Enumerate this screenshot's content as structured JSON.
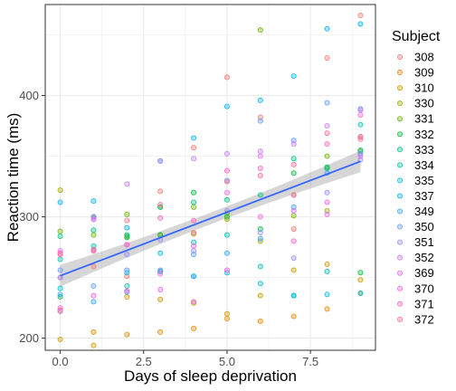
{
  "chart_data": {
    "type": "scatter",
    "xlabel": "Days of sleep deprivation",
    "ylabel": "Reaction time (ms)",
    "xlim": [
      -0.45,
      9.45
    ],
    "ylim": [
      190,
      475
    ],
    "x_ticks": [
      0,
      2.5,
      5,
      7.5
    ],
    "x_tick_labels": [
      "0.0",
      "2.5",
      "5.0",
      "7.5"
    ],
    "y_ticks": [
      200,
      300,
      400
    ],
    "y_tick_labels": [
      "200",
      "300",
      "400"
    ],
    "grid": true,
    "legend_title": "Subject",
    "legend_position": "right",
    "series": [
      {
        "name": "308",
        "color": "#F8766D",
        "x": [
          0,
          1,
          2,
          3,
          4,
          5,
          6,
          7,
          8,
          9
        ],
        "y": [
          250,
          259,
          251,
          321,
          357,
          415,
          382,
          290,
          431,
          466
        ]
      },
      {
        "name": "309",
        "color": "#E58700",
        "x": [
          0,
          1,
          2,
          3,
          4,
          5,
          6,
          7,
          8,
          9
        ],
        "y": [
          223,
          205,
          203,
          205,
          208,
          216,
          214,
          218,
          224,
          237
        ]
      },
      {
        "name": "310",
        "color": "#C99800",
        "x": [
          0,
          1,
          2,
          3,
          4,
          5,
          6,
          7,
          8,
          9
        ],
        "y": [
          199,
          194,
          234,
          232,
          229,
          220,
          235,
          256,
          261,
          248
        ]
      },
      {
        "name": "330",
        "color": "#A3A500",
        "x": [
          0,
          1,
          2,
          3,
          4,
          5,
          6,
          7,
          8,
          9
        ],
        "y": [
          322,
          300,
          284,
          285,
          286,
          298,
          280,
          318,
          305,
          354
        ]
      },
      {
        "name": "331",
        "color": "#6BB100",
        "x": [
          0,
          1,
          2,
          3,
          4,
          5,
          6,
          7,
          8,
          9
        ],
        "y": [
          288,
          285,
          302,
          308,
          308,
          303,
          454,
          301,
          350,
          366
        ]
      },
      {
        "name": "332",
        "color": "#00BA38",
        "x": [
          0,
          1,
          2,
          3,
          4,
          5,
          6,
          7,
          8,
          9
        ],
        "y": [
          234,
          300,
          283,
          285,
          320,
          300,
          290,
          336,
          341,
          254
        ]
      },
      {
        "name": "333",
        "color": "#00BF7D",
        "x": [
          0,
          1,
          2,
          3,
          4,
          5,
          6,
          7,
          8,
          9
        ],
        "y": [
          284,
          289,
          285,
          308,
          312,
          314,
          318,
          348,
          340,
          355
        ]
      },
      {
        "name": "334",
        "color": "#00C0AF",
        "x": [
          0,
          1,
          2,
          3,
          4,
          5,
          6,
          7,
          8,
          9
        ],
        "y": [
          265,
          276,
          243,
          255,
          279,
          285,
          259,
          235,
          255,
          376
        ]
      },
      {
        "name": "335",
        "color": "#00BCD8",
        "x": [
          0,
          1,
          2,
          3,
          4,
          5,
          6,
          7,
          8,
          9
        ],
        "y": [
          241,
          273,
          254,
          270,
          251,
          254,
          245,
          235,
          236,
          237
        ]
      },
      {
        "name": "337",
        "color": "#00B0F6",
        "x": [
          0,
          1,
          2,
          3,
          4,
          5,
          6,
          7,
          8,
          9
        ],
        "y": [
          312,
          313,
          291,
          346,
          365,
          391,
          396,
          416,
          455,
          459
        ]
      },
      {
        "name": "349",
        "color": "#35A2FF",
        "x": [
          0,
          1,
          2,
          3,
          4,
          5,
          6,
          7,
          8,
          9
        ],
        "y": [
          236,
          230,
          238,
          255,
          251,
          270,
          282,
          308,
          336,
          352
        ]
      },
      {
        "name": "350",
        "color": "#619CFF",
        "x": [
          0,
          1,
          2,
          3,
          4,
          5,
          6,
          7,
          8,
          9
        ],
        "y": [
          256,
          243,
          256,
          256,
          269,
          330,
          379,
          363,
          394,
          389
        ]
      },
      {
        "name": "351",
        "color": "#9590FF",
        "x": [
          0,
          1,
          2,
          3,
          4,
          5,
          6,
          7,
          8,
          9
        ],
        "y": [
          250,
          300,
          269,
          281,
          272,
          305,
          287,
          266,
          320,
          347
        ]
      },
      {
        "name": "352",
        "color": "#C77CFF",
        "x": [
          0,
          1,
          2,
          3,
          4,
          5,
          6,
          7,
          8,
          9
        ],
        "y": [
          222,
          298,
          327,
          346,
          348,
          352,
          354,
          360,
          375,
          388
        ]
      },
      {
        "name": "369",
        "color": "#E76BF3",
        "x": [
          0,
          1,
          2,
          3,
          4,
          5,
          6,
          7,
          8,
          9
        ],
        "y": [
          272,
          298,
          277,
          240,
          230,
          320,
          350,
          305,
          302,
          350
        ]
      },
      {
        "name": "370",
        "color": "#FA62DB",
        "x": [
          0,
          1,
          2,
          3,
          4,
          5,
          6,
          7,
          8,
          9
        ],
        "y": [
          225,
          235,
          239,
          253,
          276,
          256,
          300,
          280,
          312,
          384
        ]
      },
      {
        "name": "371",
        "color": "#FF62BC",
        "x": [
          0,
          1,
          2,
          3,
          4,
          5,
          6,
          7,
          8,
          9
        ],
        "y": [
          270,
          272,
          277,
          299,
          297,
          338,
          340,
          318,
          360,
          366
        ]
      },
      {
        "name": "372",
        "color": "#FF6C91",
        "x": [
          0,
          1,
          2,
          3,
          4,
          5,
          6,
          7,
          8,
          9
        ],
        "y": [
          269,
          273,
          297,
          310,
          287,
          329,
          334,
          343,
          369,
          364
        ]
      }
    ],
    "trend": {
      "type": "linear",
      "color": "#3366FF",
      "band_color": "#999999",
      "x": [
        0,
        9
      ],
      "y": [
        251.4,
        345.7
      ],
      "band_halfwidth": [
        9,
        9
      ]
    }
  }
}
